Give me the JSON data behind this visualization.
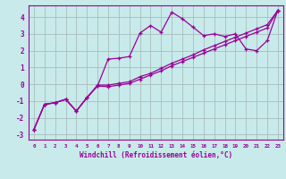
{
  "xlabel": "Windchill (Refroidissement éolien,°C)",
  "bg_color": "#c8eaea",
  "grid_color": "#aabcbc",
  "line_color": "#990099",
  "xlim": [
    -0.5,
    23.5
  ],
  "ylim": [
    -3.3,
    4.7
  ],
  "xticks": [
    0,
    1,
    2,
    3,
    4,
    5,
    6,
    7,
    8,
    9,
    10,
    11,
    12,
    13,
    14,
    15,
    16,
    17,
    18,
    19,
    20,
    21,
    22,
    23
  ],
  "yticks": [
    -3,
    -2,
    -1,
    0,
    1,
    2,
    3,
    4
  ],
  "curve1_x": [
    0,
    1,
    2,
    3,
    4,
    5,
    6,
    7,
    8,
    9,
    10,
    11,
    12,
    13,
    14,
    15,
    16,
    17,
    18,
    19,
    20,
    21,
    22,
    23
  ],
  "curve1_y": [
    -2.7,
    -1.2,
    -1.1,
    -0.9,
    -1.6,
    -0.8,
    -0.1,
    1.5,
    1.55,
    1.65,
    3.05,
    3.5,
    3.1,
    4.3,
    3.9,
    3.4,
    2.9,
    3.0,
    2.85,
    3.0,
    2.1,
    2.0,
    2.6,
    4.4
  ],
  "curve2_x": [
    0,
    1,
    2,
    3,
    4,
    5,
    6,
    7,
    8,
    9,
    10,
    11,
    12,
    13,
    14,
    15,
    16,
    17,
    18,
    19,
    20,
    21,
    22,
    23
  ],
  "curve2_y": [
    -2.7,
    -1.2,
    -1.1,
    -0.9,
    -1.6,
    -0.8,
    -0.05,
    -0.05,
    0.05,
    0.15,
    0.45,
    0.65,
    0.95,
    1.25,
    1.5,
    1.75,
    2.05,
    2.3,
    2.55,
    2.8,
    3.05,
    3.3,
    3.55,
    4.4
  ],
  "curve3_x": [
    0,
    1,
    2,
    3,
    4,
    5,
    6,
    7,
    8,
    9,
    10,
    11,
    12,
    13,
    14,
    15,
    16,
    17,
    18,
    19,
    20,
    21,
    22,
    23
  ],
  "curve3_y": [
    -2.7,
    -1.2,
    -1.1,
    -0.9,
    -1.6,
    -0.8,
    -0.1,
    -0.15,
    -0.05,
    0.05,
    0.3,
    0.55,
    0.8,
    1.1,
    1.35,
    1.6,
    1.85,
    2.1,
    2.35,
    2.6,
    2.85,
    3.1,
    3.35,
    4.4
  ]
}
